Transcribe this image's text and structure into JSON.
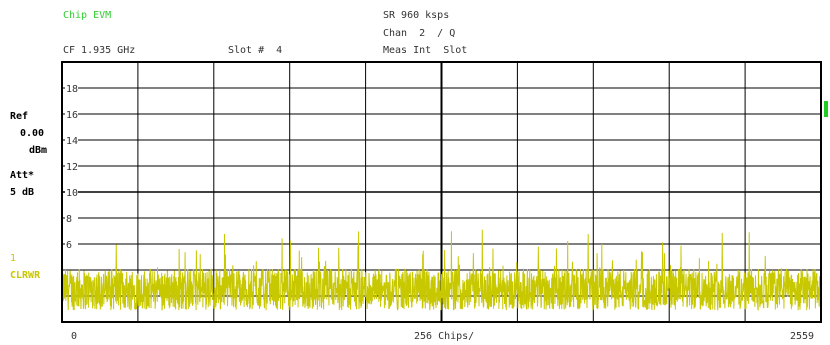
{
  "header": {
    "measurement": "Chip EVM",
    "symbol_rate": "SR 960 ksps",
    "channel": "Chan  2  / Q",
    "center_freq": "CF 1.935 GHz",
    "slot": "Slot #  4",
    "meas_int": "Meas Int  Slot"
  },
  "side_panel": {
    "ref_label": "Ref",
    "ref_value": "0.00",
    "ref_unit": "dBm",
    "att_label": "Att*",
    "att_value": "5 dB",
    "trace_number": "1",
    "trace_mode": "CLRWR"
  },
  "colors": {
    "trace": "#c8c800",
    "header_green": "#33cc33",
    "marker": "#22cc22",
    "grid": "#000000"
  },
  "chart_data": {
    "type": "line",
    "title": "Chip EVM",
    "xlabel": "256 Chips/",
    "ylabel": "",
    "x_tick_labels": [
      "0",
      "256 Chips/",
      "2559"
    ],
    "y_ticks": [
      6,
      8,
      10,
      12,
      14,
      16,
      18
    ],
    "xlim": [
      0,
      2559
    ],
    "ylim": [
      0,
      20
    ],
    "grid": true,
    "series": [
      {
        "description_values": "noise-like chip EVM trace, mean about 2.5 %, peaks up to about 7.5",
        "mean": 2.5,
        "min": 0.4,
        "max": 7.5,
        "points": 2560
      }
    ]
  }
}
